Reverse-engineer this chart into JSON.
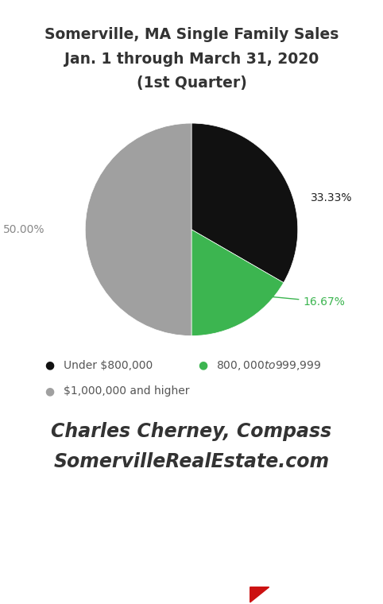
{
  "title_line1": "Somerville, MA Single Family Sales",
  "title_line2": "Jan. 1 through March 31, 2020",
  "title_line3": "(1st Quarter)",
  "slices": [
    33.33,
    16.67,
    50.0
  ],
  "colors": [
    "#111111",
    "#3cb550",
    "#a0a0a0"
  ],
  "labels": [
    "33.33%",
    "16.67%",
    "50.00%"
  ],
  "label_colors": [
    "#222222",
    "#3cb550",
    "#888888"
  ],
  "legend_labels": [
    "Under $800,000",
    "$800,000 to $999,999",
    "$1,000,000 and higher"
  ],
  "startangle": 90,
  "footer_line1": "Charles Cherney, Compass",
  "footer_line2": "SomervilleRealEstate.com",
  "background_color": "#ffffff",
  "title_color": "#333333",
  "footer_color": "#333333",
  "legend_color": "#555555"
}
